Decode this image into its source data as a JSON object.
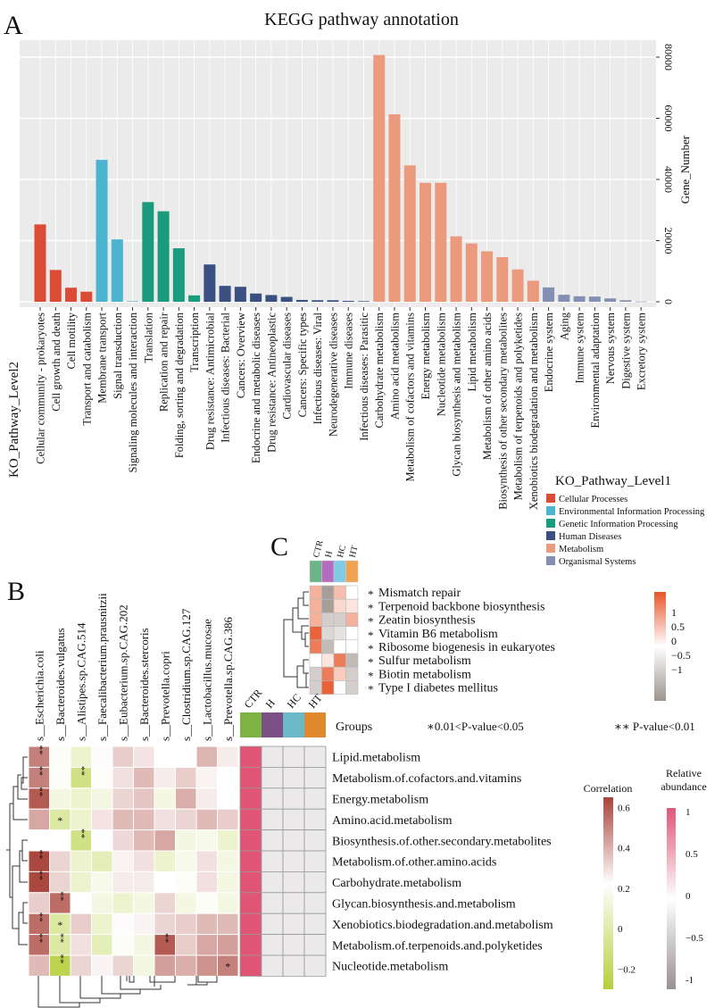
{
  "panels": {
    "a": "A",
    "b": "B",
    "c": "C"
  },
  "chart_data": [
    {
      "type": "bar",
      "title": "KEGG pathway annotation",
      "xlabel": "KO_Pathway_Level2",
      "ylabel": "Gene_Number",
      "ylim": [
        0,
        85000
      ],
      "yticks": [
        0,
        20000,
        40000,
        60000,
        80000
      ],
      "ytick_labels": [
        "0",
        "20000",
        "40000",
        "60000",
        "80000"
      ],
      "grid": true,
      "categories": [
        "Cellular community - prokaryotes",
        "Cell growth and death",
        "Cell motility",
        "Transport and catabolism",
        "Membrane transport",
        "Signal transduction",
        "Signaling molecules and interaction",
        "Translation",
        "Replication and repair",
        "Folding, sorting and degradation",
        "Transcription",
        "Drug resistance: Antimicrobial",
        "Infectious diseases: Bacterial",
        "Cancers: Overview",
        "Endocrine and metabolic diseases",
        "Drug resistance: Antineoplastic",
        "Cardiovascular diseases",
        "Cancers: Specific types",
        "Infectious diseases: Viral",
        "Neurodegenerative diseases",
        "Immune diseases",
        "Infectious diseases: Parasitic",
        "Carbohydrate metabolism",
        "Amino acid metabolism",
        "Metabolism of cofactors and vitamins",
        "Energy metabolism",
        "Nucleotide metabolism",
        "Glycan biosynthesis and metabolism",
        "Lipid metabolism",
        "Metabolism of other amino acids",
        "Biosynthesis of other secondary metabolites",
        "Metabolism of terpenoids and polyketides",
        "Xenobiotics biodegradation and metabolism",
        "Endocrine system",
        "Aging",
        "Immune system",
        "Environmental adaptation",
        "Nervous system",
        "Digestive system",
        "Excretory system"
      ],
      "values": [
        25300,
        10400,
        4600,
        3300,
        46400,
        20400,
        200,
        32600,
        29600,
        17500,
        2100,
        12200,
        5200,
        4900,
        2700,
        2200,
        1600,
        600,
        500,
        500,
        300,
        200,
        80700,
        61300,
        44600,
        38900,
        38900,
        21400,
        19100,
        16500,
        14600,
        10600,
        6900,
        4700,
        2300,
        1800,
        1700,
        1100,
        500,
        100
      ],
      "level1_index": [
        0,
        0,
        0,
        0,
        1,
        1,
        1,
        2,
        2,
        2,
        2,
        3,
        3,
        3,
        3,
        3,
        3,
        3,
        3,
        3,
        3,
        3,
        4,
        4,
        4,
        4,
        4,
        4,
        4,
        4,
        4,
        4,
        4,
        5,
        5,
        5,
        5,
        5,
        5,
        5
      ],
      "legend": {
        "title": "KO_Pathway_Level1",
        "placement": "bottom-right",
        "items": [
          {
            "label": "Cellular Processes",
            "color": "#dc4b35"
          },
          {
            "label": "Environmental Information Processing",
            "color": "#4db4cf"
          },
          {
            "label": "Genetic Information Processing",
            "color": "#1b9b7e"
          },
          {
            "label": "Human Diseases",
            "color": "#3a4f82"
          },
          {
            "label": "Metabolism",
            "color": "#ec9a7d"
          },
          {
            "label": "Organismal Systems",
            "color": "#8490b3"
          }
        ]
      }
    },
    {
      "type": "heatmap",
      "panel": "C",
      "groups": [
        {
          "label": "CTR",
          "color": "#6db48b"
        },
        {
          "label": "H",
          "color": "#b46cc0"
        },
        {
          "label": "HC",
          "color": "#82cbe6"
        },
        {
          "label": "HT",
          "color": "#f0a24e"
        }
      ],
      "rows": [
        "Mismatch repair",
        "Terpenoid backbone biosynthesis",
        "Zeatin biosynthesis",
        "Vitamin B6 metabolism",
        "Ribosome biogenesis in eukaryotes",
        "Sulfur metabolism",
        "Biotin metabolism",
        "Type I diabetes mellitus"
      ],
      "row_marker": "*",
      "values": [
        [
          0.6,
          -1.0,
          0.5,
          0.0
        ],
        [
          0.6,
          -1.0,
          0.3,
          0.2
        ],
        [
          0.6,
          -0.5,
          -0.5,
          0.6
        ],
        [
          1.2,
          -0.4,
          -0.3,
          0.0
        ],
        [
          1.0,
          -0.7,
          0.0,
          0.0
        ],
        [
          0.0,
          0.2,
          1.0,
          -0.7
        ],
        [
          -0.5,
          1.0,
          0.4,
          -0.5
        ],
        [
          -0.5,
          1.2,
          0.0,
          -0.5
        ]
      ],
      "colorbar": {
        "ticks": [
          "1",
          "0.5",
          "0",
          "−0.5",
          "−1"
        ],
        "low": "#9e948d",
        "mid": "#ffffff",
        "high": "#e8552a"
      }
    },
    {
      "type": "heatmap",
      "panel": "B",
      "columns": [
        "s__Escherichia.coli",
        "s__Bacteroides.vulgatus",
        "s__Alistipes.sp.CAG.514",
        "s__Faecalibacterium.prausnitzii",
        "s__Eubacterium.sp.CAG.202",
        "s__Bacteroides.stercoris",
        "s__Prevotella.copri",
        "s__Clostridium.sp.CAG.127",
        "s__Lactobacillus.mucosae",
        "s__Prevotella.sp.CAG.386"
      ],
      "rows": [
        "Lipid.metabolism",
        "Metabolism.of.cofactors.and.vitamins",
        "Energy.metabolism",
        "Amino.acid.metabolism",
        "Biosynthesis.of.other.secondary.metabolites",
        "Metabolism.of.other.amino.acids",
        "Carbohydrate.metabolism",
        "Glycan.biosynthesis.and.metabolism",
        "Xenobiotics.biodegradation.and.metabolism",
        "Metabolism.of.terpenoids.and.polyketides",
        "Nucleotide.metabolism"
      ],
      "correlation": [
        [
          0.5,
          0.15,
          0.05,
          0.18,
          0.3,
          0.24,
          0.17,
          0.17,
          0.36,
          0.22
        ],
        [
          0.5,
          0.15,
          -0.12,
          0.16,
          0.25,
          0.35,
          0.22,
          0.3,
          0.2,
          0.17
        ],
        [
          0.6,
          0.1,
          0.05,
          0.1,
          0.28,
          0.32,
          0.1,
          0.38,
          0.22,
          0.17
        ],
        [
          0.4,
          -0.05,
          0.05,
          0.24,
          0.35,
          0.35,
          0.25,
          0.28,
          0.35,
          0.3
        ],
        [
          0.17,
          0.17,
          -0.12,
          0.17,
          0.27,
          0.35,
          0.4,
          0.1,
          0.12,
          0.05
        ],
        [
          0.65,
          0.28,
          0.05,
          0.0,
          0.2,
          0.25,
          0.05,
          0.12,
          0.25,
          0.1
        ],
        [
          0.65,
          0.28,
          0.05,
          0.12,
          0.22,
          0.22,
          0.17,
          0.15,
          0.25,
          0.1
        ],
        [
          0.3,
          0.55,
          0.17,
          0.1,
          0.05,
          0.1,
          0.28,
          0.1,
          0.15,
          0.1
        ],
        [
          0.55,
          -0.05,
          0.3,
          0.05,
          0.18,
          0.2,
          0.28,
          0.3,
          0.35,
          0.35
        ],
        [
          0.55,
          -0.05,
          0.25,
          0.0,
          0.15,
          0.1,
          0.6,
          0.3,
          0.4,
          0.42
        ],
        [
          0.35,
          -0.25,
          0.28,
          0.2,
          0.28,
          0.1,
          0.42,
          0.38,
          0.45,
          0.5
        ]
      ],
      "significance": [
        [
          "**",
          "",
          "",
          "",
          "",
          "",
          "",
          "",
          "",
          ""
        ],
        [
          "**",
          "",
          "**",
          "",
          "",
          "",
          "",
          "",
          "",
          ""
        ],
        [
          "**",
          "",
          "",
          "",
          "",
          "",
          "",
          "",
          "",
          ""
        ],
        [
          "",
          "*",
          "",
          "",
          "",
          "",
          "",
          "",
          "",
          ""
        ],
        [
          "",
          "",
          "**",
          "",
          "",
          "",
          "",
          "",
          "",
          ""
        ],
        [
          "**",
          "",
          "",
          "",
          "",
          "",
          "",
          "",
          "",
          ""
        ],
        [
          "**",
          "",
          "",
          "",
          "",
          "",
          "",
          "",
          "",
          ""
        ],
        [
          "",
          "**",
          "",
          "",
          "",
          "",
          "",
          "",
          "",
          ""
        ],
        [
          "**",
          "*",
          "",
          "",
          "",
          "",
          "",
          "",
          "",
          ""
        ],
        [
          "**",
          "**",
          "",
          "",
          "",
          "",
          "**",
          "",
          "",
          ""
        ],
        [
          "",
          "**",
          "",
          "",
          "",
          "",
          "",
          "",
          "",
          "*"
        ]
      ],
      "groups_label": "Groups",
      "groups": [
        {
          "label": "CTR",
          "color": "#7cb342"
        },
        {
          "label": "H",
          "color": "#7a4f86"
        },
        {
          "label": "HC",
          "color": "#6bb8c9"
        },
        {
          "label": "HT",
          "color": "#e08a2e"
        }
      ],
      "relative_abundance": [
        [
          1,
          -0.2,
          -0.2,
          -0.2
        ],
        [
          1,
          -0.2,
          -0.2,
          -0.2
        ],
        [
          1,
          -0.2,
          -0.2,
          -0.2
        ],
        [
          1,
          -0.2,
          -0.2,
          -0.2
        ],
        [
          1,
          -0.2,
          -0.2,
          -0.2
        ],
        [
          1,
          -0.2,
          -0.2,
          -0.2
        ],
        [
          1,
          -0.2,
          -0.2,
          -0.2
        ],
        [
          1,
          -0.2,
          -0.2,
          -0.2
        ],
        [
          1,
          -0.2,
          -0.2,
          -0.2
        ],
        [
          1,
          -0.2,
          -0.2,
          -0.2
        ],
        [
          1,
          -0.2,
          -0.2,
          -0.2
        ]
      ],
      "pvalue_legend": {
        "single": "∗0.01<P-value<0.05",
        "double": "∗∗ P-value<0.01"
      },
      "correlation_legend": {
        "title": "Correlation",
        "ticks": [
          "0.6",
          "0.4",
          "0.2",
          "0",
          "−0.2"
        ],
        "tick_values": [
          0.6,
          0.4,
          0.2,
          0,
          -0.2
        ],
        "range": [
          -0.3,
          0.65
        ],
        "low": "#b5cf3a",
        "mid": "#ffffff",
        "high": "#a8433a"
      },
      "abundance_legend": {
        "title_line1": "Relative",
        "title_line2": "abundance",
        "ticks": [
          "1",
          "0.5",
          "0",
          "−0.5",
          "-1"
        ],
        "low": "#9a9090",
        "mid": "#ffffff",
        "high": "#e05575"
      }
    }
  ]
}
